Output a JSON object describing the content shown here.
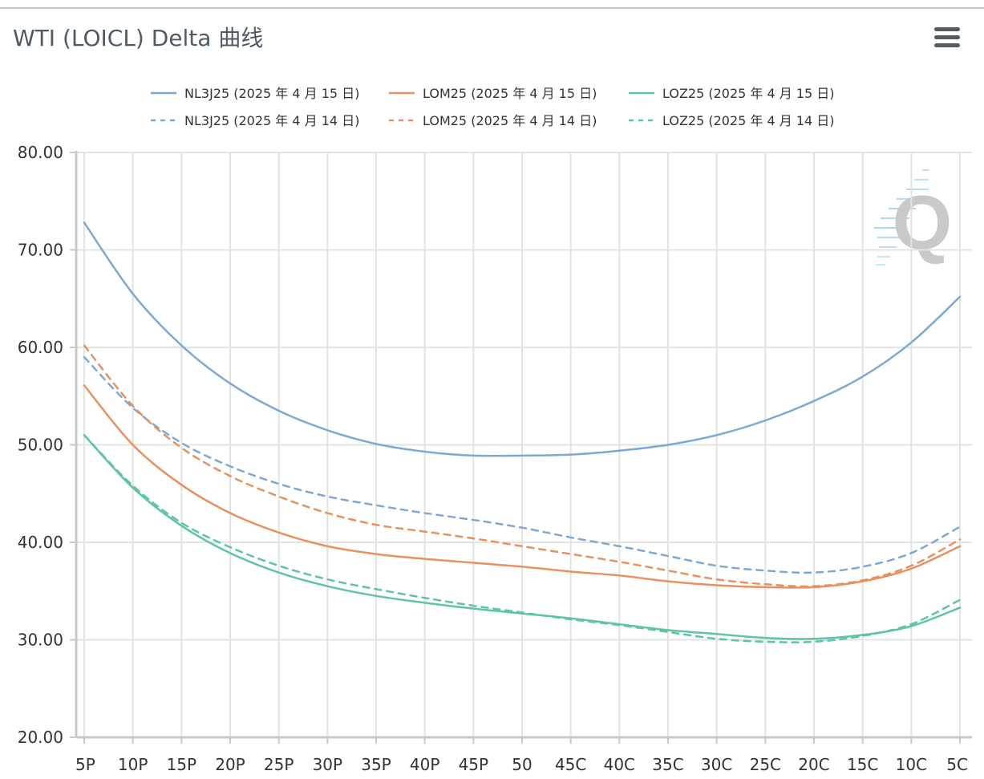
{
  "title": "WTI (LOICL) Delta 曲线",
  "menu_icon": "hamburger-menu-icon",
  "watermark": "Q",
  "chart_data": {
    "type": "line",
    "title": "WTI (LOICL) Delta 曲线",
    "categories": [
      "5P",
      "10P",
      "15P",
      "20P",
      "25P",
      "30P",
      "35P",
      "40P",
      "45P",
      "50",
      "45C",
      "40C",
      "35C",
      "30C",
      "25C",
      "20C",
      "15C",
      "10C",
      "5C"
    ],
    "ylim": [
      20,
      80
    ],
    "yticks": [
      "20.00",
      "30.00",
      "40.00",
      "50.00",
      "60.00",
      "70.00",
      "80.00"
    ],
    "grid": true,
    "legend_position": "top",
    "series": [
      {
        "name": "NL3J25 (2025 年 4 月 15 日)",
        "color": "#7ba9d6",
        "dashed": false,
        "values": [
          72.8,
          65.5,
          60.2,
          56.3,
          53.5,
          51.5,
          50.1,
          49.3,
          48.9,
          48.9,
          49.0,
          49.4,
          50.0,
          51.0,
          52.5,
          54.5,
          57.0,
          60.5,
          65.2
        ]
      },
      {
        "name": "LOM25 (2025 年 4 月 15 日)",
        "color": "#e9905f",
        "dashed": false,
        "values": [
          56.1,
          50.0,
          45.9,
          43.0,
          41.0,
          39.6,
          38.8,
          38.3,
          37.9,
          37.5,
          37.0,
          36.6,
          36.0,
          35.6,
          35.4,
          35.4,
          36.0,
          37.3,
          39.6
        ]
      },
      {
        "name": "LOZ25 (2025 年 4 月 15 日)",
        "color": "#5fc3aa",
        "dashed": false,
        "values": [
          51.0,
          45.6,
          41.7,
          38.9,
          36.9,
          35.5,
          34.5,
          33.8,
          33.2,
          32.7,
          32.2,
          31.6,
          31.0,
          30.6,
          30.2,
          30.1,
          30.5,
          31.4,
          33.3
        ]
      },
      {
        "name": "NL3J25 (2025 年 4 月 14 日)",
        "color": "#7ba9d6",
        "dashed": true,
        "values": [
          59.0,
          53.8,
          50.2,
          47.8,
          46.0,
          44.7,
          43.8,
          43.0,
          42.3,
          41.5,
          40.5,
          39.6,
          38.6,
          37.6,
          37.1,
          36.9,
          37.5,
          38.9,
          41.6
        ]
      },
      {
        "name": "LOM25 (2025 年 4 月 14 日)",
        "color": "#e9905f",
        "dashed": true,
        "values": [
          60.2,
          54.0,
          49.7,
          46.8,
          44.7,
          43.0,
          41.8,
          41.1,
          40.4,
          39.6,
          38.8,
          38.0,
          37.1,
          36.2,
          35.7,
          35.5,
          36.1,
          37.6,
          40.3
        ]
      },
      {
        "name": "LOZ25 (2025 年 4 月 14 日)",
        "color": "#5fc3aa",
        "dashed": true,
        "values": [
          51.0,
          45.8,
          42.0,
          39.5,
          37.6,
          36.2,
          35.2,
          34.3,
          33.5,
          32.8,
          32.1,
          31.5,
          30.8,
          30.1,
          29.8,
          29.8,
          30.4,
          31.6,
          34.1
        ]
      }
    ]
  }
}
